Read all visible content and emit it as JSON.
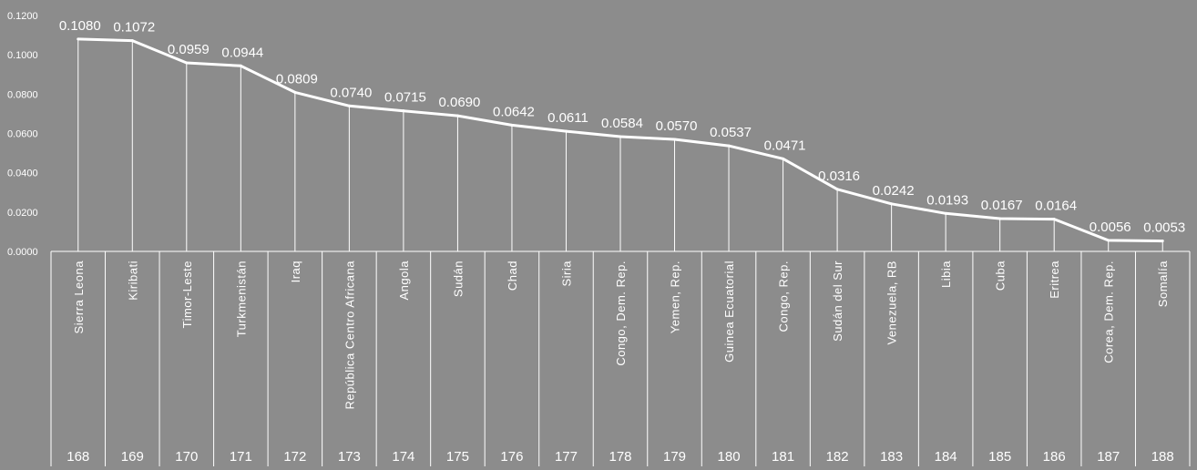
{
  "chart_data": {
    "type": "line",
    "title": "",
    "xlabel": "",
    "ylabel": "",
    "ylim": [
      0,
      0.12
    ],
    "yticks": [
      "0.0000",
      "0.0200",
      "0.0400",
      "0.0600",
      "0.0800",
      "0.1000",
      "0.1200"
    ],
    "grid": false,
    "legend": "none",
    "colors": {
      "background": "#8c8c8c",
      "line": "#ffffff",
      "text": "#ffffff"
    },
    "categories": [
      "Sierra Leona",
      "Kiribati",
      "Timor-Leste",
      "Turkmenistán",
      "Iraq",
      "República Centro Africana",
      "Angola",
      "Sudán",
      "Chad",
      "Siria",
      "Congo, Dem. Rep.",
      "Yemen, Rep.",
      "Guinea Ecuatorial",
      "Congo, Rep.",
      "Sudán del Sur",
      "Venezuela, RB",
      "Libia",
      "Cuba",
      "Eritrea",
      "Corea, Dem. Rep.",
      "Somalía"
    ],
    "ranks": [
      "168",
      "169",
      "170",
      "171",
      "172",
      "173",
      "174",
      "175",
      "176",
      "177",
      "178",
      "179",
      "180",
      "181",
      "182",
      "183",
      "184",
      "185",
      "186",
      "187",
      "188"
    ],
    "values": [
      0.108,
      0.1072,
      0.0959,
      0.0944,
      0.0809,
      0.074,
      0.0715,
      0.069,
      0.0642,
      0.0611,
      0.0584,
      0.057,
      0.0537,
      0.0471,
      0.0316,
      0.0242,
      0.0193,
      0.0167,
      0.0164,
      0.0056,
      0.0053
    ],
    "value_labels": [
      "0.1080",
      "0.1072",
      "0.0959",
      "0.0944",
      "0.0809",
      "0.0740",
      "0.0715",
      "0.0690",
      "0.0642",
      "0.0611",
      "0.0584",
      "0.0570",
      "0.0537",
      "0.0471",
      "0.0316",
      "0.0242",
      "0.0193",
      "0.0167",
      "0.0164",
      "0.0056",
      "0.0053"
    ]
  }
}
